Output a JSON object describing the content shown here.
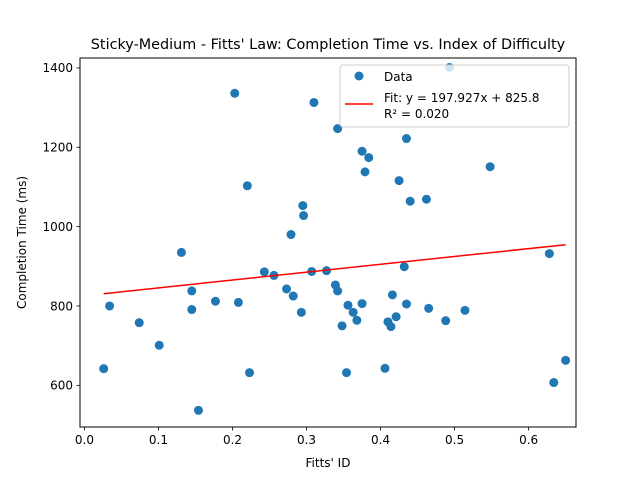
{
  "chart_data": {
    "type": "scatter",
    "title": "Sticky-Medium - Fitts' Law: Completion Time vs. Index of Difficulty",
    "xlabel": "Fitts' ID",
    "ylabel": "Completion Time (ms)",
    "xlim": [
      -0.006,
      0.664
    ],
    "ylim": [
      495,
      1425
    ],
    "xticks": [
      0.0,
      0.1,
      0.2,
      0.3,
      0.4,
      0.5,
      0.6
    ],
    "xtick_labels": [
      "0.0",
      "0.1",
      "0.2",
      "0.3",
      "0.4",
      "0.5",
      "0.6"
    ],
    "yticks": [
      600,
      800,
      1000,
      1200,
      1400
    ],
    "ytick_labels": [
      "600",
      "800",
      "1000",
      "1200",
      "1400"
    ],
    "grid": false,
    "legend_position": "top-right",
    "series": [
      {
        "name": "Data",
        "kind": "scatter",
        "color": "#1f77b4",
        "points": [
          [
            0.026,
            642
          ],
          [
            0.034,
            800
          ],
          [
            0.074,
            758
          ],
          [
            0.101,
            701
          ],
          [
            0.131,
            935
          ],
          [
            0.145,
            838
          ],
          [
            0.145,
            791
          ],
          [
            0.154,
            537
          ],
          [
            0.177,
            812
          ],
          [
            0.203,
            1336
          ],
          [
            0.208,
            809
          ],
          [
            0.22,
            1103
          ],
          [
            0.223,
            632
          ],
          [
            0.243,
            886
          ],
          [
            0.256,
            877
          ],
          [
            0.273,
            843
          ],
          [
            0.279,
            980
          ],
          [
            0.282,
            825
          ],
          [
            0.293,
            784
          ],
          [
            0.295,
            1053
          ],
          [
            0.296,
            1028
          ],
          [
            0.307,
            887
          ],
          [
            0.31,
            1313
          ],
          [
            0.327,
            889
          ],
          [
            0.339,
            853
          ],
          [
            0.342,
            838
          ],
          [
            0.342,
            1247
          ],
          [
            0.348,
            750
          ],
          [
            0.354,
            632
          ],
          [
            0.356,
            802
          ],
          [
            0.363,
            784
          ],
          [
            0.368,
            764
          ],
          [
            0.375,
            1190
          ],
          [
            0.375,
            806
          ],
          [
            0.379,
            1138
          ],
          [
            0.384,
            1174
          ],
          [
            0.406,
            643
          ],
          [
            0.41,
            760
          ],
          [
            0.414,
            748
          ],
          [
            0.416,
            828
          ],
          [
            0.421,
            773
          ],
          [
            0.425,
            1116
          ],
          [
            0.432,
            899
          ],
          [
            0.435,
            805
          ],
          [
            0.435,
            1222
          ],
          [
            0.44,
            1064
          ],
          [
            0.462,
            1069
          ],
          [
            0.465,
            794
          ],
          [
            0.488,
            763
          ],
          [
            0.493,
            1401
          ],
          [
            0.514,
            789
          ],
          [
            0.548,
            1151
          ],
          [
            0.628,
            932
          ],
          [
            0.634,
            607
          ],
          [
            0.65,
            663
          ]
        ]
      },
      {
        "name": "Fit: y = 197.927x + 825.8\nR² = 0.020",
        "kind": "line",
        "color": "#ff0000",
        "slope": 197.927,
        "intercept": 825.8,
        "x_range": [
          0.026,
          0.65
        ]
      }
    ],
    "legend": [
      {
        "label": "Data",
        "marker": "circle"
      },
      {
        "label": "Fit: y = 197.927x + 825.8",
        "marker": "line"
      },
      {
        "label": "R² = 0.020",
        "marker": "none"
      }
    ]
  }
}
